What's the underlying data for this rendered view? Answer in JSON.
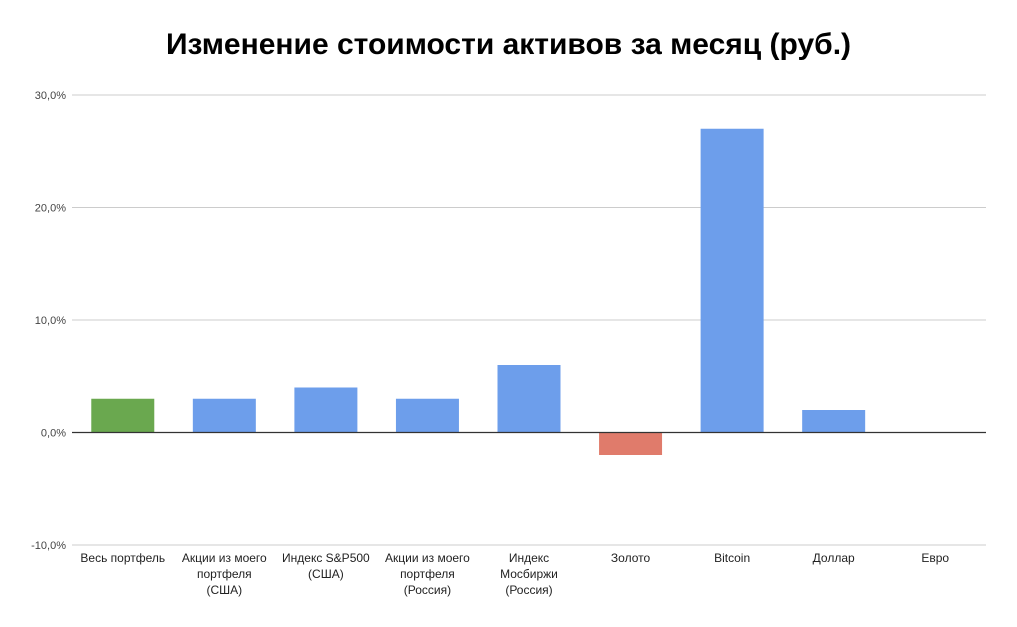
{
  "chart_data": {
    "type": "bar",
    "title": "Изменение стоимости активов за месяц (руб.)",
    "xlabel": "",
    "ylabel": "",
    "ylim": [
      -10,
      30
    ],
    "yticks": [
      {
        "value": 30,
        "label": "30,0%"
      },
      {
        "value": 20,
        "label": "20,0%"
      },
      {
        "value": 10,
        "label": "10,0%"
      },
      {
        "value": 0,
        "label": "0,0%"
      },
      {
        "value": -10,
        "label": "-10,0%"
      }
    ],
    "grid": true,
    "categories": [
      [
        "Весь портфель"
      ],
      [
        "Акции из моего",
        "портфеля",
        "(США)"
      ],
      [
        "Индекс S&P500",
        "(США)"
      ],
      [
        "Акции из моего",
        "портфеля",
        "(Россия)"
      ],
      [
        "Индекс",
        "Мосбиржи",
        "(Россия)"
      ],
      [
        "Золото"
      ],
      [
        "Bitcoin"
      ],
      [
        "Доллар"
      ],
      [
        "Евро"
      ]
    ],
    "values": [
      3,
      3,
      4,
      3,
      6,
      -2,
      27,
      2,
      0
    ],
    "colors": [
      "#6aa84f",
      "#6d9eeb",
      "#6d9eeb",
      "#6d9eeb",
      "#6d9eeb",
      "#e07b6b",
      "#6d9eeb",
      "#6d9eeb",
      "#6d9eeb"
    ]
  }
}
